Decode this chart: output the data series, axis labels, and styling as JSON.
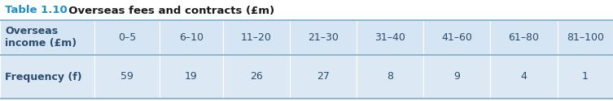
{
  "title_prefix": "Table 1.10",
  "title_rest": "  Overseas fees and contracts (£m)",
  "title_prefix_color": "#1b8fc7",
  "title_rest_color": "#1a1a1a",
  "header_row_label": "Overseas\nincome (£m)",
  "header_cols": [
    "0–5",
    "6–10",
    "11–20",
    "21–30",
    "31–40",
    "41–60",
    "61–80",
    "81–100"
  ],
  "data_row_label": "Frequency (f)",
  "data_values": [
    "59",
    "19",
    "26",
    "27",
    "8",
    "9",
    "4",
    "1"
  ],
  "table_bg_color": "#d6e5f3",
  "row2_bg_color": "#dce9f5",
  "border_color": "#7aaac8",
  "text_color": "#2b4d70",
  "title_font_size": 9.5,
  "cell_font_size": 9.0
}
